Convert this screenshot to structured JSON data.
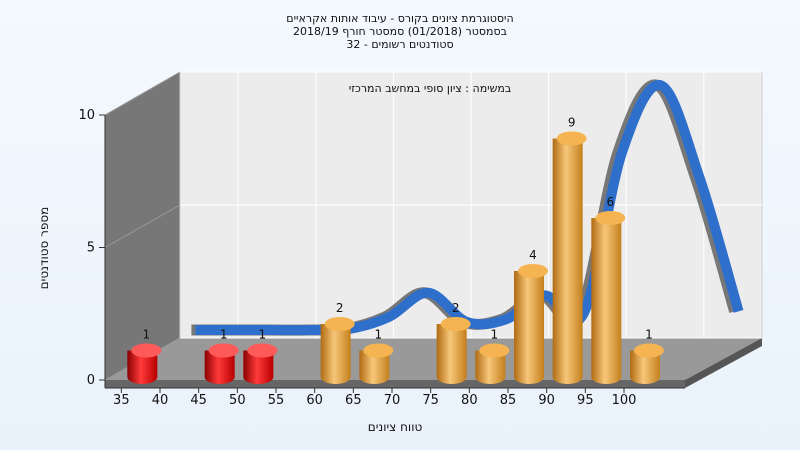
{
  "chart_data": {
    "type": "bar",
    "title_lines": [
      "היסטוגרמת ציונים בקורס - עיבוד אותות אקראיים",
      "בסמסטר  (01/2018)  סמסטר חורף 2018/19",
      "סטודנטים רשומים - 32"
    ],
    "subtitle": "במשימה : ציון סופי במחשב המרכזי",
    "xlabel": "טווח ציונים",
    "ylabel": "מספר סטודנטים",
    "x_ticks": [
      "35",
      "40",
      "45",
      "50",
      "55",
      "60",
      "65",
      "70",
      "75",
      "80",
      "85",
      "90",
      "95",
      "100"
    ],
    "y_ticks": [
      0,
      5,
      10
    ],
    "ylim": [
      0,
      10
    ],
    "bars": [
      {
        "x": 35,
        "value": 1,
        "group": "fail"
      },
      {
        "x": 45,
        "value": 1,
        "group": "fail"
      },
      {
        "x": 50,
        "value": 1,
        "group": "fail"
      },
      {
        "x": 60,
        "value": 2,
        "group": "pass"
      },
      {
        "x": 65,
        "value": 1,
        "group": "pass"
      },
      {
        "x": 75,
        "value": 2,
        "group": "pass"
      },
      {
        "x": 80,
        "value": 1,
        "group": "pass"
      },
      {
        "x": 85,
        "value": 4,
        "group": "pass"
      },
      {
        "x": 90,
        "value": 9,
        "group": "pass"
      },
      {
        "x": 95,
        "value": 6,
        "group": "pass"
      },
      {
        "x": 100,
        "value": 1,
        "group": "pass"
      }
    ],
    "curve": {
      "x": [
        35,
        40,
        45,
        50,
        55,
        60,
        65,
        70,
        75,
        80,
        85,
        90,
        95,
        100,
        105
      ],
      "values": [
        0.3,
        0.3,
        0.3,
        0.3,
        0.35,
        0.8,
        1.7,
        0.6,
        0.7,
        1.6,
        0.9,
        7.0,
        9.5,
        6.0,
        1.0
      ]
    },
    "colors": {
      "fail": "#dd1111",
      "pass": "#e8a23a",
      "curve": "#2f6fcc",
      "curve_back": "#777777",
      "back_wall": "#ececec",
      "side_wall": "#777777",
      "floor": "#999999"
    },
    "grid": true
  }
}
